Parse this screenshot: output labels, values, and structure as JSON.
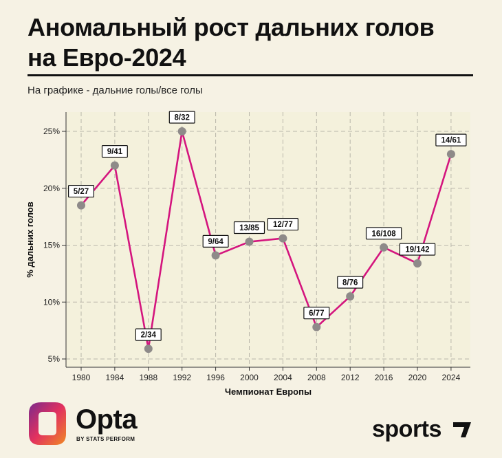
{
  "header": {
    "title_line1": "Аномальный рост дальних голов",
    "title_line2": "на Евро-2024",
    "subtitle": "На графике - дальние голы/все голы"
  },
  "chart_data": {
    "type": "line",
    "title": "Аномальный рост дальних голов на Евро-2024",
    "subtitle": "На графике - дальние голы/все голы",
    "xlabel": "Чемпионат Европы",
    "ylabel": "% дальних голов",
    "categories": [
      "1980",
      "1984",
      "1988",
      "1992",
      "1996",
      "2000",
      "2004",
      "2008",
      "2012",
      "2016",
      "2020",
      "2024"
    ],
    "series": [
      {
        "values": [
          18.5,
          22.0,
          5.9,
          25.0,
          14.1,
          15.3,
          15.6,
          7.8,
          10.5,
          14.8,
          13.4,
          23.0
        ],
        "labels": [
          "5/27",
          "9/41",
          "2/34",
          "8/32",
          "9/64",
          "13/85",
          "12/77",
          "6/77",
          "8/76",
          "16/108",
          "19/142",
          "14/61"
        ]
      }
    ],
    "ylim": [
      5,
      26
    ],
    "yticks": [
      5,
      10,
      15,
      20,
      25
    ],
    "ytick_labels": [
      "5%",
      "10%",
      "15%",
      "20%",
      "25%"
    ],
    "grid": true,
    "line_color": "#d4157e",
    "marker_color": "#8e8a89"
  },
  "footer": {
    "opta_word": "Opta",
    "opta_sub": "BY STATS PERFORM",
    "sports_word": "sports"
  },
  "colors": {
    "background": "#f6f2e4",
    "plot_background": "#f4f1dc",
    "line": "#d4157e",
    "marker": "#8e8a89",
    "opta_orange": "#f08a24",
    "opta_purple": "#7a2a8c"
  }
}
